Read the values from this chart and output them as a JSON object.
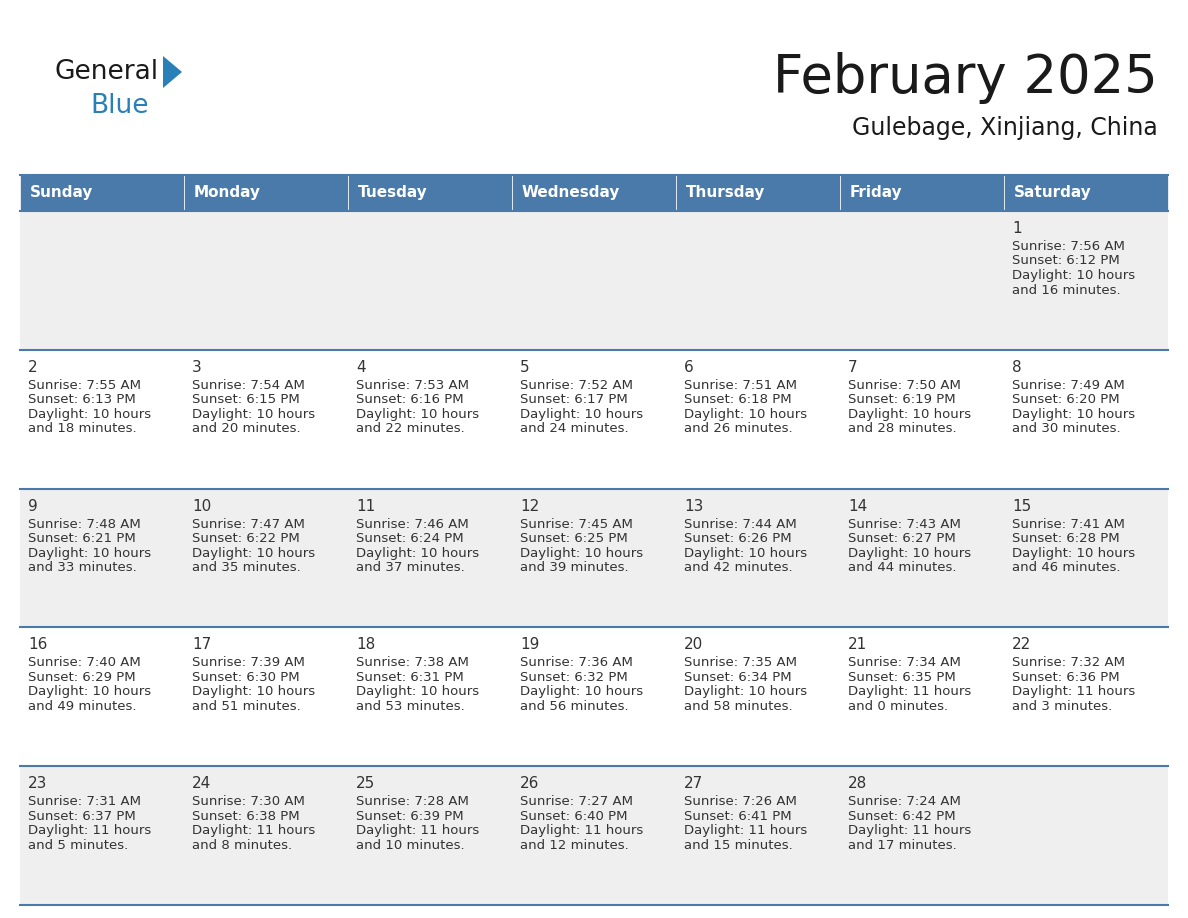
{
  "title": "February 2025",
  "subtitle": "Gulebage, Xinjiang, China",
  "header_bg": "#4a7aaa",
  "header_text": "#ffffff",
  "cell_bg_odd": "#efefef",
  "cell_bg_even": "#ffffff",
  "border_color": "#4a7aaa",
  "title_color": "#1a1a1a",
  "subtitle_color": "#1a1a1a",
  "text_color": "#333333",
  "logo_general_color": "#1a1a1a",
  "logo_blue_color": "#2980b9",
  "logo_triangle_color": "#2980b9",
  "day_headers": [
    "Sunday",
    "Monday",
    "Tuesday",
    "Wednesday",
    "Thursday",
    "Friday",
    "Saturday"
  ],
  "calendar": [
    [
      {
        "day": null
      },
      {
        "day": null
      },
      {
        "day": null
      },
      {
        "day": null
      },
      {
        "day": null
      },
      {
        "day": null
      },
      {
        "day": 1,
        "sunrise": "7:56 AM",
        "sunset": "6:12 PM",
        "daylight_h": "10 hours",
        "daylight_m": "and 16 minutes."
      }
    ],
    [
      {
        "day": 2,
        "sunrise": "7:55 AM",
        "sunset": "6:13 PM",
        "daylight_h": "10 hours",
        "daylight_m": "and 18 minutes."
      },
      {
        "day": 3,
        "sunrise": "7:54 AM",
        "sunset": "6:15 PM",
        "daylight_h": "10 hours",
        "daylight_m": "and 20 minutes."
      },
      {
        "day": 4,
        "sunrise": "7:53 AM",
        "sunset": "6:16 PM",
        "daylight_h": "10 hours",
        "daylight_m": "and 22 minutes."
      },
      {
        "day": 5,
        "sunrise": "7:52 AM",
        "sunset": "6:17 PM",
        "daylight_h": "10 hours",
        "daylight_m": "and 24 minutes."
      },
      {
        "day": 6,
        "sunrise": "7:51 AM",
        "sunset": "6:18 PM",
        "daylight_h": "10 hours",
        "daylight_m": "and 26 minutes."
      },
      {
        "day": 7,
        "sunrise": "7:50 AM",
        "sunset": "6:19 PM",
        "daylight_h": "10 hours",
        "daylight_m": "and 28 minutes."
      },
      {
        "day": 8,
        "sunrise": "7:49 AM",
        "sunset": "6:20 PM",
        "daylight_h": "10 hours",
        "daylight_m": "and 30 minutes."
      }
    ],
    [
      {
        "day": 9,
        "sunrise": "7:48 AM",
        "sunset": "6:21 PM",
        "daylight_h": "10 hours",
        "daylight_m": "and 33 minutes."
      },
      {
        "day": 10,
        "sunrise": "7:47 AM",
        "sunset": "6:22 PM",
        "daylight_h": "10 hours",
        "daylight_m": "and 35 minutes."
      },
      {
        "day": 11,
        "sunrise": "7:46 AM",
        "sunset": "6:24 PM",
        "daylight_h": "10 hours",
        "daylight_m": "and 37 minutes."
      },
      {
        "day": 12,
        "sunrise": "7:45 AM",
        "sunset": "6:25 PM",
        "daylight_h": "10 hours",
        "daylight_m": "and 39 minutes."
      },
      {
        "day": 13,
        "sunrise": "7:44 AM",
        "sunset": "6:26 PM",
        "daylight_h": "10 hours",
        "daylight_m": "and 42 minutes."
      },
      {
        "day": 14,
        "sunrise": "7:43 AM",
        "sunset": "6:27 PM",
        "daylight_h": "10 hours",
        "daylight_m": "and 44 minutes."
      },
      {
        "day": 15,
        "sunrise": "7:41 AM",
        "sunset": "6:28 PM",
        "daylight_h": "10 hours",
        "daylight_m": "and 46 minutes."
      }
    ],
    [
      {
        "day": 16,
        "sunrise": "7:40 AM",
        "sunset": "6:29 PM",
        "daylight_h": "10 hours",
        "daylight_m": "and 49 minutes."
      },
      {
        "day": 17,
        "sunrise": "7:39 AM",
        "sunset": "6:30 PM",
        "daylight_h": "10 hours",
        "daylight_m": "and 51 minutes."
      },
      {
        "day": 18,
        "sunrise": "7:38 AM",
        "sunset": "6:31 PM",
        "daylight_h": "10 hours",
        "daylight_m": "and 53 minutes."
      },
      {
        "day": 19,
        "sunrise": "7:36 AM",
        "sunset": "6:32 PM",
        "daylight_h": "10 hours",
        "daylight_m": "and 56 minutes."
      },
      {
        "day": 20,
        "sunrise": "7:35 AM",
        "sunset": "6:34 PM",
        "daylight_h": "10 hours",
        "daylight_m": "and 58 minutes."
      },
      {
        "day": 21,
        "sunrise": "7:34 AM",
        "sunset": "6:35 PM",
        "daylight_h": "11 hours",
        "daylight_m": "and 0 minutes."
      },
      {
        "day": 22,
        "sunrise": "7:32 AM",
        "sunset": "6:36 PM",
        "daylight_h": "11 hours",
        "daylight_m": "and 3 minutes."
      }
    ],
    [
      {
        "day": 23,
        "sunrise": "7:31 AM",
        "sunset": "6:37 PM",
        "daylight_h": "11 hours",
        "daylight_m": "and 5 minutes."
      },
      {
        "day": 24,
        "sunrise": "7:30 AM",
        "sunset": "6:38 PM",
        "daylight_h": "11 hours",
        "daylight_m": "and 8 minutes."
      },
      {
        "day": 25,
        "sunrise": "7:28 AM",
        "sunset": "6:39 PM",
        "daylight_h": "11 hours",
        "daylight_m": "and 10 minutes."
      },
      {
        "day": 26,
        "sunrise": "7:27 AM",
        "sunset": "6:40 PM",
        "daylight_h": "11 hours",
        "daylight_m": "and 12 minutes."
      },
      {
        "day": 27,
        "sunrise": "7:26 AM",
        "sunset": "6:41 PM",
        "daylight_h": "11 hours",
        "daylight_m": "and 15 minutes."
      },
      {
        "day": 28,
        "sunrise": "7:24 AM",
        "sunset": "6:42 PM",
        "daylight_h": "11 hours",
        "daylight_m": "and 17 minutes."
      },
      {
        "day": null
      }
    ]
  ]
}
